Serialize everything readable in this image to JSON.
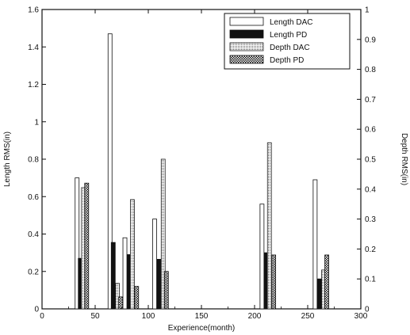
{
  "chart_data": {
    "type": "bar",
    "xlabel": "Experience(month)",
    "ylabel": "Length RMS(in)",
    "y2label": "Depth RMS(in)",
    "xlim": [
      0,
      300
    ],
    "ylim": [
      0,
      1.6
    ],
    "y2lim": [
      0,
      1
    ],
    "xticks": [
      0,
      50,
      100,
      150,
      200,
      250,
      300
    ],
    "yticks": [
      0,
      0.2,
      0.4,
      0.6,
      0.8,
      1,
      1.2,
      1.4,
      1.6
    ],
    "y2ticks": [
      0,
      0.1,
      0.2,
      0.3,
      0.4,
      0.5,
      0.6,
      0.7,
      0.8,
      0.9,
      1
    ],
    "x_tick_labels": [
      "0",
      "50",
      "100",
      "150",
      "200",
      "250",
      "300"
    ],
    "y_tick_labels": [
      "0",
      "0.2",
      "0.4",
      "0.6",
      "0.8",
      "1",
      "1.2",
      "1.4",
      "1.6"
    ],
    "y2_tick_labels": [
      "0",
      "0.1",
      "0.2",
      "0.3",
      "0.4",
      "0.5",
      "0.6",
      "0.7",
      "0.8",
      "0.9",
      "1"
    ],
    "grid": false,
    "legend_position": "top-right",
    "series": [
      {
        "name": "Length DAC",
        "axis": "left",
        "style": "white",
        "points": [
          {
            "x": 33,
            "y": 0.7
          },
          {
            "x": 64,
            "y": 1.47
          },
          {
            "x": 78,
            "y": 0.38
          },
          {
            "x": 106,
            "y": 0.48
          },
          {
            "x": 207,
            "y": 0.56
          },
          {
            "x": 257,
            "y": 0.69
          }
        ]
      },
      {
        "name": "Length PD",
        "axis": "left",
        "style": "black",
        "points": [
          {
            "x": 36,
            "y": 0.27
          },
          {
            "x": 67,
            "y": 0.355
          },
          {
            "x": 82,
            "y": 0.29
          },
          {
            "x": 110,
            "y": 0.265
          },
          {
            "x": 211,
            "y": 0.3
          },
          {
            "x": 261,
            "y": 0.16
          }
        ]
      },
      {
        "name": "Depth DAC",
        "axis": "right",
        "style": "dotted",
        "points": [
          {
            "x": 39,
            "y": 0.405
          },
          {
            "x": 71,
            "y": 0.085
          },
          {
            "x": 85,
            "y": 0.365
          },
          {
            "x": 114,
            "y": 0.5
          },
          {
            "x": 214,
            "y": 0.555
          },
          {
            "x": 265,
            "y": 0.13
          }
        ]
      },
      {
        "name": "Depth PD",
        "axis": "right",
        "style": "checker",
        "points": [
          {
            "x": 42,
            "y": 0.42
          },
          {
            "x": 74,
            "y": 0.04
          },
          {
            "x": 89,
            "y": 0.075
          },
          {
            "x": 117,
            "y": 0.125
          },
          {
            "x": 218,
            "y": 0.18
          },
          {
            "x": 268,
            "y": 0.18
          }
        ]
      }
    ]
  }
}
